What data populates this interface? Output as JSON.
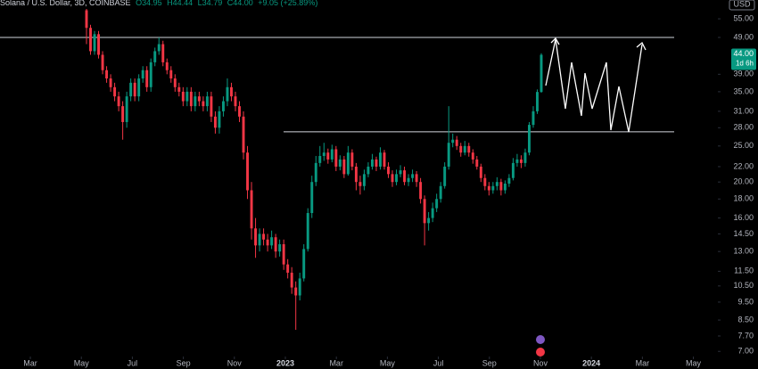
{
  "chart_data": {
    "type": "candlestick",
    "header": {
      "symbol": "Solana / U.S. Dollar, 3D, COINBASE",
      "open": "O34.95",
      "high": "H44.44",
      "low": "L34.79",
      "close": "C44.00",
      "change": "+9.05 (+25.89%)"
    },
    "currency": "USD",
    "last_price_label": "44.00",
    "countdown": "1d 6h",
    "log_scale": true,
    "up_color": "#089981",
    "down_color": "#f23645",
    "ylim": [
      61.8,
      6.78
    ],
    "yticks": [
      {
        "value": 55,
        "label": "55.00"
      },
      {
        "value": 49,
        "label": "49.00"
      },
      {
        "value": 39,
        "label": "39.00"
      },
      {
        "value": 35,
        "label": "35.00"
      },
      {
        "value": 31,
        "label": "31.00"
      },
      {
        "value": 28,
        "label": "28.00"
      },
      {
        "value": 25,
        "label": "25.00"
      },
      {
        "value": 22,
        "label": "22.00"
      },
      {
        "value": 20,
        "label": "20.00"
      },
      {
        "value": 18,
        "label": "18.00"
      },
      {
        "value": 16,
        "label": "16.00"
      },
      {
        "value": 14.5,
        "label": "14.50"
      },
      {
        "value": 13,
        "label": "13.00"
      },
      {
        "value": 11.5,
        "label": "11.50"
      },
      {
        "value": 10.5,
        "label": "10.50"
      },
      {
        "value": 9.5,
        "label": "9.50"
      },
      {
        "value": 8.5,
        "label": "8.50"
      },
      {
        "value": 7.7,
        "label": "7.70"
      },
      {
        "value": 7,
        "label": "7.00"
      }
    ],
    "xlim": [
      -1.19,
      26.96
    ],
    "xticks": [
      {
        "value": 0,
        "label": "Mar"
      },
      {
        "value": 2,
        "label": "May"
      },
      {
        "value": 4,
        "label": "Jul"
      },
      {
        "value": 6,
        "label": "Sep"
      },
      {
        "value": 8,
        "label": "Nov"
      },
      {
        "value": 10,
        "label": "2023"
      },
      {
        "value": 12,
        "label": "Mar"
      },
      {
        "value": 14,
        "label": "May"
      },
      {
        "value": 16,
        "label": "Jul"
      },
      {
        "value": 18,
        "label": "Sep"
      },
      {
        "value": 20,
        "label": "Nov"
      },
      {
        "value": 22,
        "label": "2024"
      },
      {
        "value": 24,
        "label": "Mar"
      },
      {
        "value": 26,
        "label": "May"
      }
    ],
    "levels": [
      49,
      27.3
    ],
    "candles": [
      [
        58,
        62,
        47,
        52
      ],
      [
        52,
        53,
        44,
        45
      ],
      [
        45,
        51,
        44,
        50
      ],
      [
        50,
        51,
        43,
        44
      ],
      [
        44,
        45,
        39,
        40
      ],
      [
        40,
        41,
        37,
        38
      ],
      [
        38,
        39,
        35,
        36
      ],
      [
        36,
        37,
        33,
        34
      ],
      [
        34,
        35,
        31,
        32
      ],
      [
        32,
        33,
        26,
        29
      ],
      [
        29,
        35,
        28,
        34
      ],
      [
        34,
        38,
        33,
        37
      ],
      [
        37,
        38,
        33,
        34
      ],
      [
        34,
        39,
        33,
        38
      ],
      [
        38,
        41,
        37,
        40
      ],
      [
        40,
        41,
        35,
        36
      ],
      [
        36,
        43,
        35,
        42
      ],
      [
        42,
        46,
        41,
        45
      ],
      [
        45,
        49,
        44,
        47
      ],
      [
        47,
        48,
        41,
        42
      ],
      [
        42,
        43,
        39,
        40
      ],
      [
        40,
        41,
        37,
        38
      ],
      [
        38,
        39,
        35,
        36
      ],
      [
        36,
        37,
        34,
        35
      ],
      [
        35,
        36,
        32,
        33
      ],
      [
        33,
        36,
        32,
        35
      ],
      [
        35,
        36,
        31,
        32
      ],
      [
        32,
        35,
        31,
        34
      ],
      [
        34,
        35,
        32,
        33
      ],
      [
        33,
        34,
        31,
        32
      ],
      [
        32,
        35,
        31,
        34
      ],
      [
        34,
        35,
        29,
        30
      ],
      [
        30,
        31,
        27,
        28
      ],
      [
        28,
        32,
        27,
        31
      ],
      [
        31,
        34,
        30,
        33
      ],
      [
        33,
        38,
        32,
        36
      ],
      [
        36,
        37,
        33,
        34
      ],
      [
        34,
        35,
        31,
        32
      ],
      [
        32,
        33,
        29,
        30
      ],
      [
        30,
        31,
        23,
        24
      ],
      [
        24,
        25,
        18,
        19
      ],
      [
        19,
        20,
        14,
        15
      ],
      [
        15,
        16,
        12.5,
        13.5
      ],
      [
        13.5,
        15,
        13,
        14.5
      ],
      [
        14.5,
        15,
        13.5,
        14
      ],
      [
        14,
        14.5,
        13,
        13.5
      ],
      [
        13.5,
        14.8,
        13.2,
        14.2
      ],
      [
        14.2,
        14.5,
        12.5,
        13
      ],
      [
        13,
        14,
        12.6,
        13.6
      ],
      [
        13.6,
        14,
        11.6,
        12
      ],
      [
        12,
        12.4,
        11,
        11.4
      ],
      [
        11.4,
        11.8,
        10,
        10.4
      ],
      [
        10.4,
        10.8,
        8,
        9.9
      ],
      [
        9.9,
        11.4,
        9.6,
        11
      ],
      [
        11,
        13.6,
        10.8,
        13.2
      ],
      [
        13.2,
        17,
        13,
        16.5
      ],
      [
        16.5,
        20.8,
        16,
        20
      ],
      [
        20,
        23.5,
        19.5,
        22.5
      ],
      [
        22.5,
        25,
        22,
        23.5
      ],
      [
        23.5,
        25.5,
        22.8,
        24
      ],
      [
        24,
        24.6,
        22.4,
        23
      ],
      [
        23,
        25.2,
        22.6,
        24.5
      ],
      [
        24.5,
        25,
        21.4,
        22
      ],
      [
        22,
        23.6,
        21.5,
        23
      ],
      [
        23,
        23.5,
        20.5,
        21
      ],
      [
        21,
        25,
        20.8,
        24
      ],
      [
        24,
        24.5,
        21.5,
        22
      ],
      [
        22,
        22.5,
        19,
        20
      ],
      [
        20,
        20.8,
        18.5,
        19.5
      ],
      [
        19.5,
        21.6,
        19,
        21
      ],
      [
        21,
        22.6,
        20.6,
        22
      ],
      [
        22,
        23.8,
        21.6,
        23
      ],
      [
        23,
        23.4,
        21.4,
        22
      ],
      [
        22,
        24.8,
        21.6,
        24
      ],
      [
        24,
        24.4,
        21.6,
        22
      ],
      [
        22,
        22.6,
        20.5,
        21
      ],
      [
        21,
        21.5,
        19.4,
        20
      ],
      [
        20,
        21.6,
        19.6,
        21
      ],
      [
        21,
        22.2,
        20.6,
        21.5
      ],
      [
        21.5,
        22,
        19.6,
        20
      ],
      [
        20,
        21,
        19.5,
        20.5
      ],
      [
        20.5,
        21.6,
        20,
        21
      ],
      [
        21,
        21.4,
        19.4,
        20
      ],
      [
        20,
        20.5,
        17.5,
        18
      ],
      [
        18,
        18.4,
        13.5,
        15.5
      ],
      [
        15.5,
        16.6,
        14.8,
        16
      ],
      [
        16,
        17.6,
        15.6,
        17
      ],
      [
        17,
        18.6,
        16.6,
        18
      ],
      [
        18,
        20,
        17.6,
        19.5
      ],
      [
        19.5,
        22.6,
        19.2,
        22
      ],
      [
        22,
        32,
        21.6,
        25.5
      ],
      [
        25.5,
        27,
        24.8,
        26
      ],
      [
        26,
        26.6,
        24.4,
        25
      ],
      [
        25,
        25.5,
        23.4,
        24
      ],
      [
        24,
        25.8,
        23.6,
        25
      ],
      [
        25,
        25.5,
        23.4,
        24
      ],
      [
        24,
        24.5,
        22.4,
        23
      ],
      [
        23,
        23.5,
        21.6,
        22
      ],
      [
        22,
        22.4,
        20,
        20.5
      ],
      [
        20.5,
        21,
        19,
        19.5
      ],
      [
        19.5,
        20,
        18.4,
        19
      ],
      [
        19,
        20,
        18.6,
        19.5
      ],
      [
        19.5,
        20.6,
        19,
        20
      ],
      [
        20,
        20.4,
        18.4,
        19
      ],
      [
        19,
        20.2,
        18.6,
        19.8
      ],
      [
        19.8,
        21,
        19.4,
        20.5
      ],
      [
        20.5,
        23.2,
        20.2,
        22.5
      ],
      [
        22.5,
        23.8,
        22,
        23
      ],
      [
        23,
        23.6,
        21.8,
        22.5
      ],
      [
        22.5,
        24.6,
        22,
        24
      ],
      [
        24,
        29,
        23.6,
        28.5
      ],
      [
        28.5,
        32,
        28,
        31
      ],
      [
        31,
        35.5,
        30.5,
        34.95
      ],
      [
        34.95,
        44.44,
        34.79,
        44
      ]
    ]
  }
}
